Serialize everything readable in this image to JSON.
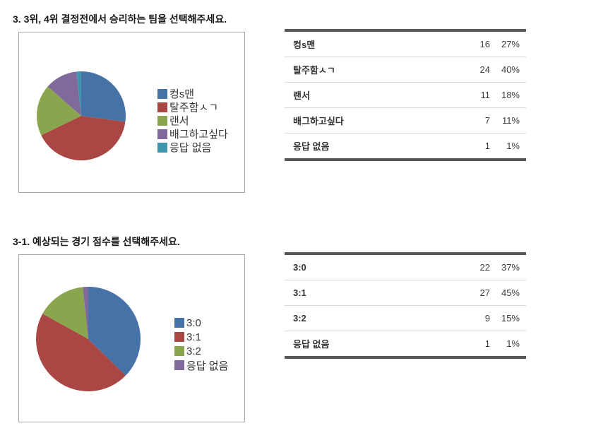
{
  "colors": {
    "background": "#ffffff",
    "title_text": "#1a1a1a",
    "chart_box_border": "#a6a6a6",
    "table_border": "#56575a",
    "row_divider": "#d9d9d9",
    "table_label": "#333333",
    "table_value": "#3c3c3c",
    "legend_text": "#333333"
  },
  "questions": [
    {
      "title": "3. 3위, 4위 결정전에서 승리하는 팀을 선택해주세요.",
      "table": {
        "rows": [
          {
            "label": "컹s맨",
            "count": "16",
            "percent": "27%"
          },
          {
            "label": "탈주함ㅅㄱ",
            "count": "24",
            "percent": "40%"
          },
          {
            "label": "랜서",
            "count": "11",
            "percent": "18%"
          },
          {
            "label": "배그하고싶다",
            "count": "7",
            "percent": "11%"
          },
          {
            "label": "응답 없음",
            "count": "1",
            "percent": "1%"
          }
        ]
      }
    },
    {
      "title": "3-1. 예상되는 경기 점수를 선택해주세요.",
      "table": {
        "rows": [
          {
            "label": "3:0",
            "count": "22",
            "percent": "37%"
          },
          {
            "label": "3:1",
            "count": "27",
            "percent": "45%"
          },
          {
            "label": "3:2",
            "count": "9",
            "percent": "15%"
          },
          {
            "label": "응답 없음",
            "count": "1",
            "percent": "1%"
          }
        ]
      }
    }
  ],
  "chart_data": [
    {
      "type": "pie",
      "title": "3. 3위, 4위 결정전에서 승리하는 팀을 선택해주세요.",
      "labels": [
        "컹s맨",
        "탈주함ㅅㄱ",
        "랜서",
        "배그하고싶다",
        "응답 없음"
      ],
      "values": [
        16,
        24,
        11,
        7,
        1
      ],
      "percents": [
        "27%",
        "40%",
        "18%",
        "11%",
        "1%"
      ],
      "colors": [
        "#4572a7",
        "#aa4643",
        "#89a54e",
        "#80699b",
        "#3d96ae"
      ],
      "legend_position": "right",
      "start_angle_deg": 0,
      "direction": "clockwise"
    },
    {
      "type": "pie",
      "title": "3-1. 예상되는 경기 점수를 선택해주세요.",
      "labels": [
        "3:0",
        "3:1",
        "3:2",
        "응답 없음"
      ],
      "values": [
        22,
        27,
        9,
        1
      ],
      "percents": [
        "37%",
        "45%",
        "15%",
        "1%"
      ],
      "colors": [
        "#4572a7",
        "#aa4643",
        "#89a54e",
        "#80699b"
      ],
      "legend_position": "right",
      "start_angle_deg": 0,
      "direction": "clockwise"
    }
  ]
}
